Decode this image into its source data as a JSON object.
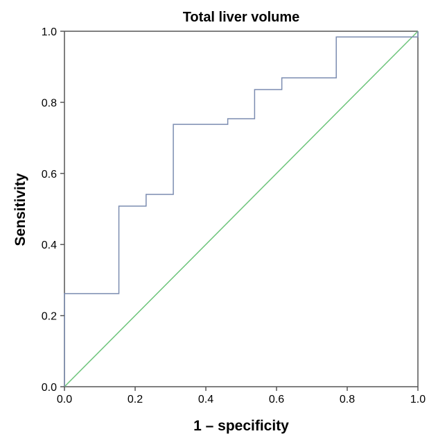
{
  "chart_data": {
    "type": "line",
    "title": "Total liver volume",
    "xlabel": "1 – specificity",
    "ylabel": "Sensitivity",
    "xlim": [
      0.0,
      1.0
    ],
    "ylim": [
      0.0,
      1.0
    ],
    "x_ticks": [
      "0.0",
      "0.2",
      "0.4",
      "0.6",
      "0.8",
      "1.0"
    ],
    "y_ticks": [
      "0.0",
      "0.2",
      "0.4",
      "0.6",
      "0.8",
      "1.0"
    ],
    "grid": false,
    "legend": "none",
    "series": [
      {
        "role": "roc-curve",
        "color": "#7b8cb0",
        "step": true,
        "points": [
          [
            0.0,
            0.0
          ],
          [
            0.0,
            0.262
          ],
          [
            0.154,
            0.262
          ],
          [
            0.154,
            0.508
          ],
          [
            0.231,
            0.508
          ],
          [
            0.231,
            0.541
          ],
          [
            0.308,
            0.541
          ],
          [
            0.308,
            0.738
          ],
          [
            0.462,
            0.738
          ],
          [
            0.462,
            0.754
          ],
          [
            0.538,
            0.754
          ],
          [
            0.538,
            0.836
          ],
          [
            0.615,
            0.836
          ],
          [
            0.615,
            0.869
          ],
          [
            0.769,
            0.869
          ],
          [
            0.769,
            0.984
          ],
          [
            1.0,
            0.984
          ],
          [
            1.0,
            1.0
          ]
        ]
      },
      {
        "role": "reference-line",
        "color": "#6cc47a",
        "step": false,
        "points": [
          [
            0.0,
            0.0
          ],
          [
            1.0,
            1.0
          ]
        ]
      }
    ]
  }
}
